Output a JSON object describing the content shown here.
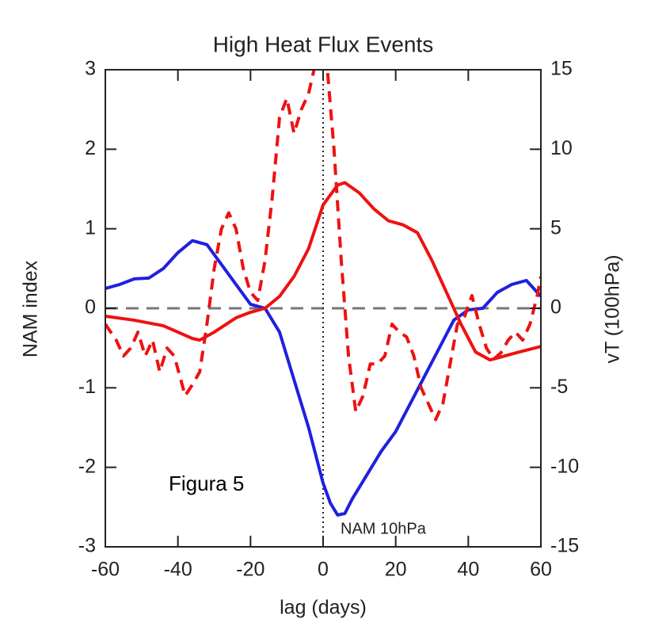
{
  "chart_data": {
    "type": "line",
    "title": "High Heat Flux Events",
    "x_label": "lag (days)",
    "y_label": "NAM index",
    "y2_label": "vT (100hPa)",
    "annotations": [
      "Figura 5",
      "NAM 10hPa"
    ],
    "xlim": [
      -60,
      60
    ],
    "xticks": [
      -60,
      -40,
      -20,
      0,
      20,
      40,
      60
    ],
    "ylim": [
      -3,
      3
    ],
    "yticks": [
      -3,
      -2,
      -1,
      0,
      1,
      2,
      3
    ],
    "y2lim": [
      -15,
      15
    ],
    "y2ticks": [
      -15,
      -10,
      -5,
      0,
      5,
      10,
      15
    ],
    "series": [
      {
        "color": "#2020e0",
        "style": "solid",
        "x": [
          -60,
          -56,
          -52,
          -48,
          -44,
          -40,
          -36,
          -32,
          -28,
          -24,
          -20,
          -16,
          -12,
          -8,
          -4,
          0,
          2,
          4,
          6,
          8,
          12,
          16,
          20,
          24,
          28,
          32,
          36,
          40,
          44,
          48,
          52,
          56,
          60
        ],
        "values": [
          0.25,
          0.3,
          0.37,
          0.38,
          0.5,
          0.7,
          0.85,
          0.8,
          0.55,
          0.3,
          0.05,
          0.0,
          -0.3,
          -0.9,
          -1.5,
          -2.2,
          -2.45,
          -2.6,
          -2.58,
          -2.4,
          -2.1,
          -1.8,
          -1.55,
          -1.2,
          -0.85,
          -0.5,
          -0.15,
          -0.02,
          0.0,
          0.2,
          0.3,
          0.35,
          0.15
        ]
      },
      {
        "color": "#ee1111",
        "style": "solid",
        "x": [
          -60,
          -52,
          -44,
          -40,
          -36,
          -34,
          -30,
          -24,
          -20,
          -16,
          -12,
          -8,
          -4,
          0,
          4,
          6,
          10,
          14,
          18,
          22,
          26,
          30,
          34,
          38,
          42,
          46,
          50,
          54,
          60
        ],
        "values": [
          -0.1,
          -0.15,
          -0.22,
          -0.3,
          -0.38,
          -0.4,
          -0.3,
          -0.12,
          -0.05,
          0.0,
          0.15,
          0.4,
          0.75,
          1.3,
          1.55,
          1.58,
          1.45,
          1.25,
          1.1,
          1.05,
          0.95,
          0.6,
          0.2,
          -0.2,
          -0.55,
          -0.65,
          -0.6,
          -0.55,
          -0.48
        ]
      },
      {
        "color": "#ee1111",
        "style": "dashed",
        "axis": "y2",
        "x": [
          -60,
          -57,
          -55,
          -53,
          -51,
          -49,
          -47,
          -45,
          -43,
          -41,
          -38,
          -36,
          -34,
          -32,
          -30,
          -28,
          -26,
          -24,
          -22,
          -20,
          -18,
          -16,
          -14,
          -12,
          -10,
          -8,
          -6,
          -4,
          -2,
          1,
          3,
          5,
          7,
          9,
          11,
          13,
          15,
          17,
          19,
          21,
          23,
          25,
          27,
          29,
          31,
          33,
          35,
          37,
          39,
          41,
          43,
          45,
          47,
          49,
          51,
          53,
          55,
          57,
          59,
          60
        ],
        "values": [
          -1,
          -2,
          -3,
          -2.5,
          -1.5,
          -3,
          -2,
          -4,
          -2.5,
          -3,
          -5.5,
          -4.8,
          -4,
          -1,
          2.5,
          5,
          6,
          5,
          2.5,
          1,
          0.5,
          3,
          7,
          12,
          13.2,
          11,
          12.5,
          13.5,
          15.5,
          15.5,
          10,
          3,
          -3,
          -6.5,
          -5.5,
          -3.5,
          -3.5,
          -3,
          -1,
          -1.5,
          -1.8,
          -3,
          -5,
          -6,
          -7,
          -6,
          -3.5,
          -1,
          -0.5,
          0.8,
          -1,
          -2.5,
          -3.2,
          -2.8,
          -2,
          -1.5,
          -2,
          -1,
          0.8,
          2
        ]
      }
    ]
  }
}
